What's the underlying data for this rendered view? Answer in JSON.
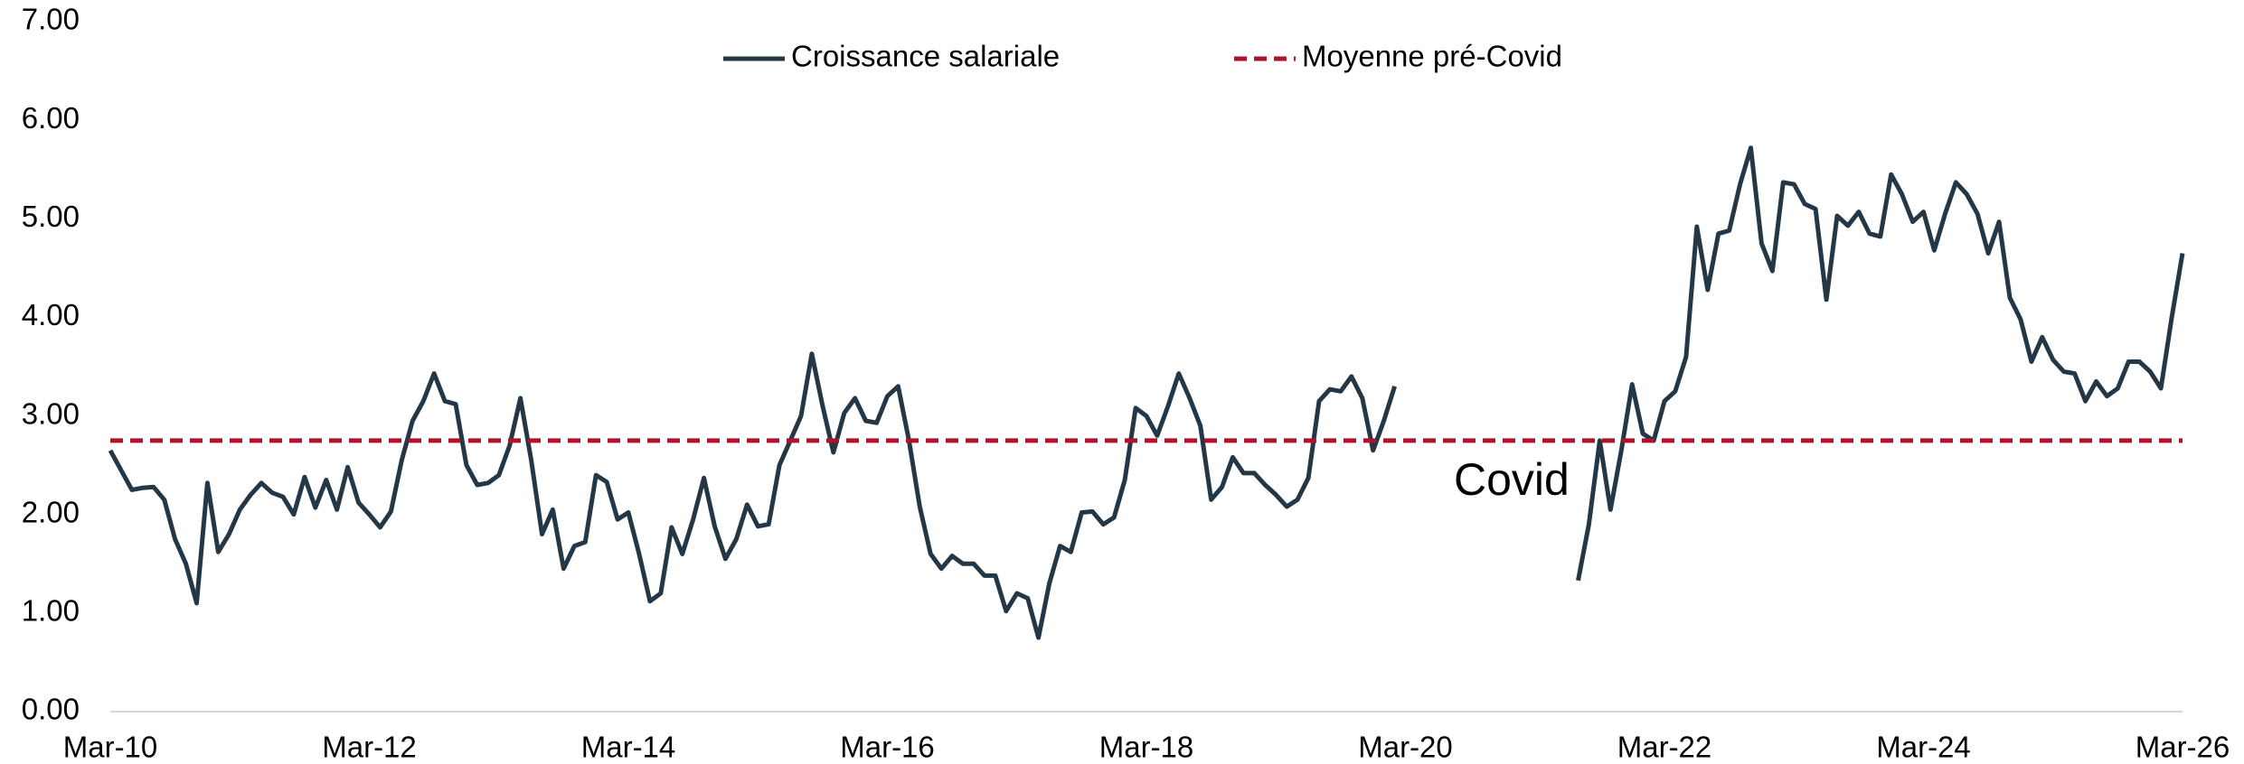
{
  "chart_data": {
    "type": "line",
    "categories": [
      "Mar-10",
      null,
      null,
      null,
      null,
      null,
      null,
      null,
      null,
      null,
      null,
      null,
      null,
      null,
      null,
      null,
      null,
      null,
      null,
      null,
      null,
      null,
      null,
      null,
      "Mar-12",
      null,
      null,
      null,
      null,
      null,
      null,
      null,
      null,
      null,
      null,
      null,
      null,
      null,
      null,
      null,
      null,
      null,
      null,
      null,
      null,
      null,
      null,
      null,
      "Mar-14",
      null,
      null,
      null,
      null,
      null,
      null,
      null,
      null,
      null,
      null,
      null,
      null,
      null,
      null,
      null,
      null,
      null,
      null,
      null,
      null,
      null,
      null,
      null,
      "Mar-16",
      null,
      null,
      null,
      null,
      null,
      null,
      null,
      null,
      null,
      null,
      null,
      null,
      null,
      null,
      null,
      null,
      null,
      null,
      null,
      null,
      null,
      null,
      null,
      "Mar-18",
      null,
      null,
      null,
      null,
      null,
      null,
      null,
      null,
      null,
      null,
      null,
      null,
      null,
      null,
      null,
      null,
      null,
      null,
      null,
      null,
      null,
      null,
      null,
      "Mar-20",
      null,
      null,
      null,
      null,
      null,
      null,
      null,
      null,
      null,
      null,
      null,
      null,
      null,
      null,
      null,
      null,
      null,
      null,
      null,
      null,
      null,
      null,
      null,
      "Mar-22",
      null,
      null,
      null,
      null,
      null,
      null,
      null,
      null,
      null,
      null,
      null,
      null,
      null,
      null,
      null,
      null,
      null,
      null,
      null,
      null,
      null,
      null,
      null,
      "Mar-24",
      null,
      null,
      null,
      null,
      null,
      null,
      null,
      null,
      null,
      null,
      null,
      null,
      null,
      null,
      null,
      null,
      null,
      null,
      null,
      null,
      null,
      null,
      null,
      "Mar-26"
    ],
    "series": [
      {
        "name": "Croissance salariale",
        "color": "#243746",
        "values": [
          2.65,
          2.45,
          2.25,
          2.27,
          2.28,
          2.15,
          1.75,
          1.5,
          1.1,
          2.32,
          1.62,
          1.8,
          2.05,
          2.2,
          2.32,
          2.22,
          2.18,
          2.0,
          2.38,
          2.07,
          2.35,
          2.05,
          2.48,
          2.12,
          2.0,
          1.87,
          2.03,
          2.55,
          2.95,
          3.15,
          3.43,
          3.15,
          3.12,
          2.5,
          2.3,
          2.32,
          2.4,
          2.7,
          3.18,
          2.55,
          1.8,
          2.05,
          1.45,
          1.68,
          1.72,
          2.4,
          2.33,
          1.95,
          2.02,
          1.6,
          1.12,
          1.2,
          1.87,
          1.6,
          1.95,
          2.37,
          1.88,
          1.55,
          1.75,
          2.1,
          1.88,
          1.9,
          2.5,
          2.75,
          3.0,
          3.63,
          3.1,
          2.63,
          3.03,
          3.18,
          2.95,
          2.93,
          3.2,
          3.3,
          2.75,
          2.08,
          1.6,
          1.45,
          1.58,
          1.5,
          1.5,
          1.38,
          1.38,
          1.02,
          1.2,
          1.15,
          0.75,
          1.3,
          1.68,
          1.62,
          2.02,
          2.03,
          1.9,
          1.97,
          2.35,
          3.08,
          3.0,
          2.8,
          3.1,
          3.43,
          3.18,
          2.9,
          2.15,
          2.28,
          2.58,
          2.42,
          2.42,
          2.3,
          2.2,
          2.08,
          2.15,
          2.37,
          3.15,
          3.27,
          3.25,
          3.4,
          3.18,
          2.65,
          2.95,
          3.3,
          null,
          null,
          null,
          null,
          null,
          null,
          null,
          null,
          null,
          null,
          null,
          null,
          null,
          null,
          null,
          null,
          1.33,
          1.9,
          2.75,
          2.05,
          2.65,
          3.32,
          2.82,
          2.75,
          3.15,
          3.25,
          3.6,
          4.92,
          4.28,
          4.85,
          4.88,
          5.35,
          5.72,
          4.75,
          4.47,
          5.37,
          5.35,
          5.15,
          5.1,
          4.18,
          5.03,
          4.93,
          5.07,
          4.85,
          4.82,
          5.45,
          5.25,
          4.97,
          5.07,
          4.68,
          5.05,
          5.37,
          5.25,
          5.05,
          4.65,
          4.97,
          4.2,
          3.98,
          3.55,
          3.8,
          3.57,
          3.45,
          3.43,
          3.15,
          3.35,
          3.2,
          3.28,
          3.55,
          3.55,
          3.45,
          3.28,
          4.0,
          4.65
        ]
      },
      {
        "name": "Moyenne pré-Covid",
        "color": "#b0122a",
        "dashed": true,
        "value": 2.75
      }
    ],
    "annotations": [
      "Covid"
    ],
    "ylim": [
      0,
      7
    ],
    "yticks": [
      {
        "value": 0,
        "label": "0.00"
      },
      {
        "value": 1,
        "label": "1.00"
      },
      {
        "value": 2,
        "label": "2.00"
      },
      {
        "value": 3,
        "label": "3.00"
      },
      {
        "value": 4,
        "label": "4.00"
      },
      {
        "value": 5,
        "label": "5.00"
      },
      {
        "value": 6,
        "label": "6.00"
      },
      {
        "value": 7,
        "label": "7.00"
      }
    ],
    "grid": false,
    "legend": "top"
  }
}
